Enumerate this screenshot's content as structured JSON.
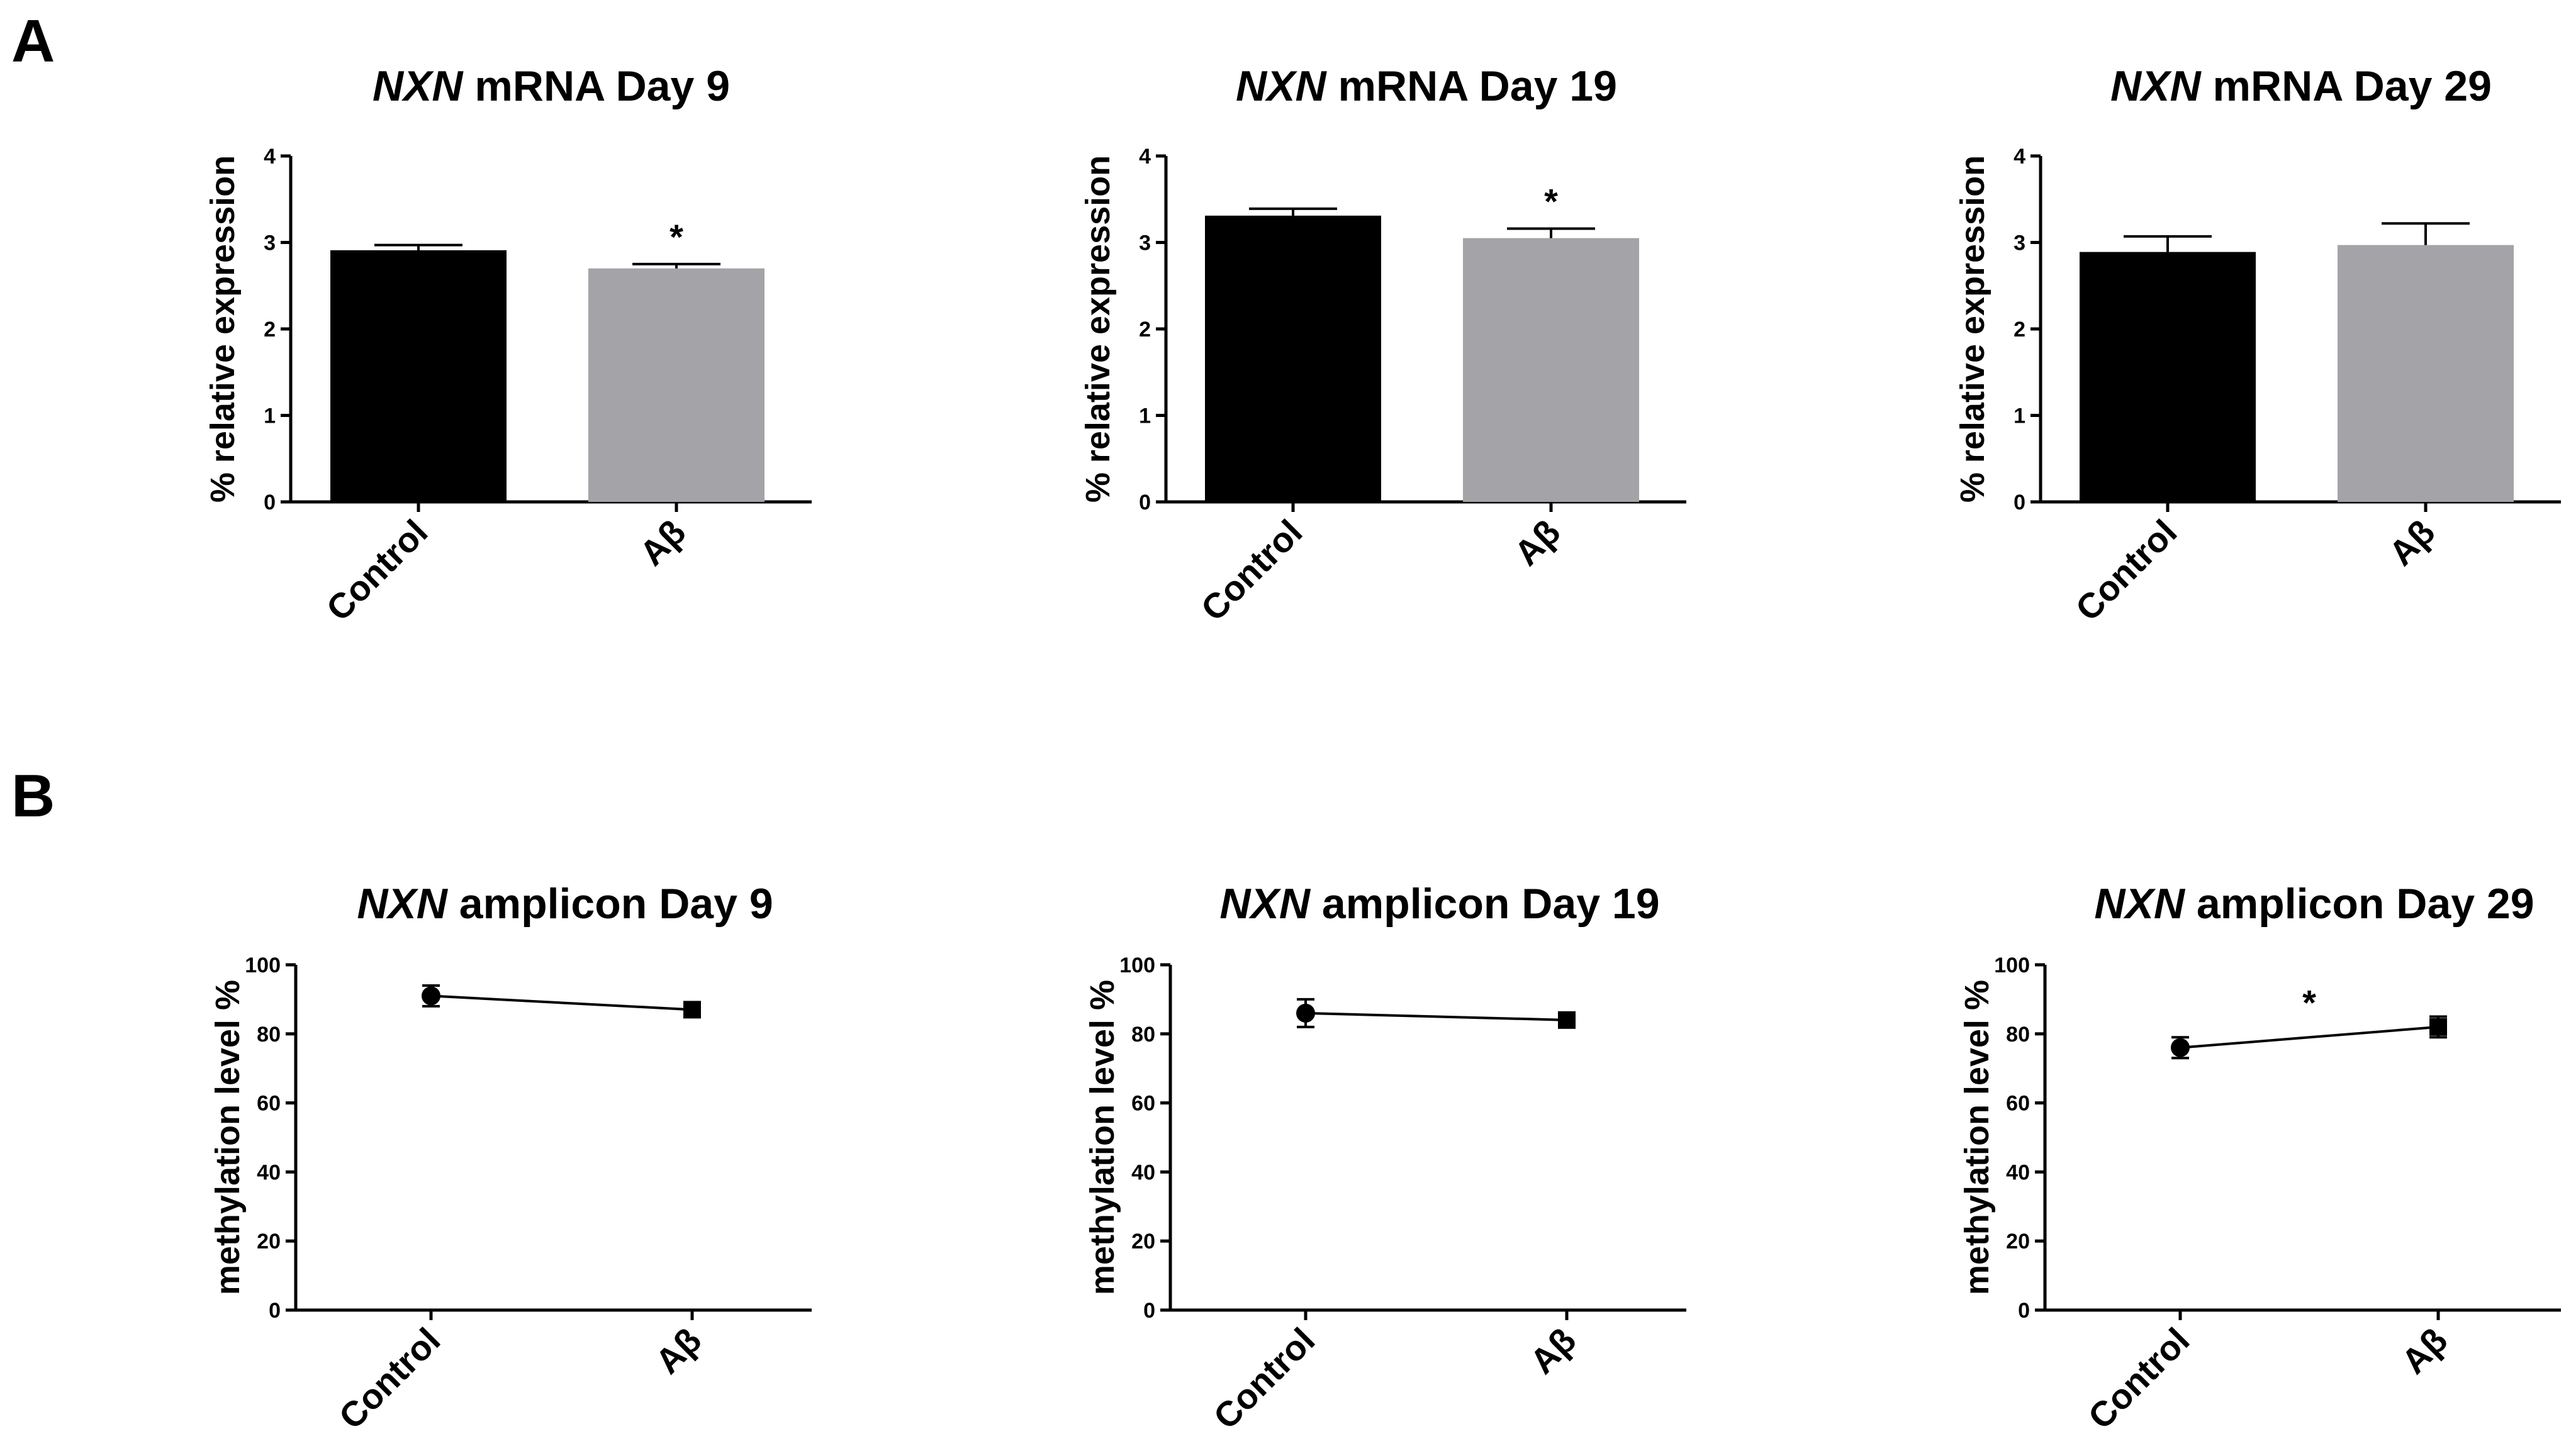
{
  "panels": [
    {
      "letter": "A"
    },
    {
      "letter": "B"
    }
  ],
  "chart_data": [
    {
      "type": "bar",
      "panel": "A",
      "title_gene": "NXN",
      "title_rest": " mRNA Day 9",
      "ylabel": "% relative expression",
      "categories": [
        "Control",
        "Aβ"
      ],
      "values": [
        2.91,
        2.7
      ],
      "errors": [
        0.06,
        0.05
      ],
      "colors": [
        "#000000",
        "#a3a3a8"
      ],
      "ylim": [
        0,
        4
      ],
      "yticks": [
        0,
        1,
        2,
        3,
        4
      ],
      "annotations": [
        {
          "category_index": 1,
          "text": "*"
        }
      ]
    },
    {
      "type": "bar",
      "panel": "A",
      "title_gene": "NXN",
      "title_rest": " mRNA Day 19",
      "ylabel": "% relative expression",
      "categories": [
        "Control",
        "Aβ"
      ],
      "values": [
        3.31,
        3.05
      ],
      "errors": [
        0.08,
        0.11
      ],
      "colors": [
        "#000000",
        "#a3a3a8"
      ],
      "ylim": [
        0,
        4
      ],
      "yticks": [
        0,
        1,
        2,
        3,
        4
      ],
      "annotations": [
        {
          "category_index": 1,
          "text": "*"
        }
      ]
    },
    {
      "type": "bar",
      "panel": "A",
      "title_gene": "NXN",
      "title_rest": " mRNA Day 29",
      "ylabel": "% relative expression",
      "categories": [
        "Control",
        "Aβ"
      ],
      "values": [
        2.89,
        2.97
      ],
      "errors": [
        0.18,
        0.25
      ],
      "colors": [
        "#000000",
        "#a3a3a8"
      ],
      "ylim": [
        0,
        4
      ],
      "yticks": [
        0,
        1,
        2,
        3,
        4
      ],
      "annotations": []
    },
    {
      "type": "line",
      "panel": "B",
      "title_gene": "NXN",
      "title_rest": " amplicon Day 9",
      "ylabel": "methylation level %",
      "categories": [
        "Control",
        "Aβ"
      ],
      "values": [
        91,
        87
      ],
      "errors": [
        3,
        1
      ],
      "markers": [
        "circle",
        "square"
      ],
      "ylim": [
        0,
        100
      ],
      "yticks": [
        0,
        20,
        40,
        60,
        80,
        100
      ],
      "annotations": []
    },
    {
      "type": "line",
      "panel": "B",
      "title_gene": "NXN",
      "title_rest": " amplicon Day 19",
      "ylabel": "methylation level %",
      "categories": [
        "Control",
        "Aβ"
      ],
      "values": [
        86,
        84
      ],
      "errors": [
        4,
        1
      ],
      "markers": [
        "circle",
        "square"
      ],
      "ylim": [
        0,
        100
      ],
      "yticks": [
        0,
        20,
        40,
        60,
        80,
        100
      ],
      "annotations": []
    },
    {
      "type": "line",
      "panel": "B",
      "title_gene": "NXN",
      "title_rest": " amplicon Day 29",
      "ylabel": "methylation level %",
      "categories": [
        "Control",
        "Aβ"
      ],
      "values": [
        76,
        82
      ],
      "errors": [
        3,
        3
      ],
      "markers": [
        "circle",
        "square"
      ],
      "ylim": [
        0,
        100
      ],
      "yticks": [
        0,
        20,
        40,
        60,
        80,
        100
      ],
      "annotations": [
        {
          "between": [
            0,
            1
          ],
          "text": "*"
        }
      ]
    }
  ]
}
